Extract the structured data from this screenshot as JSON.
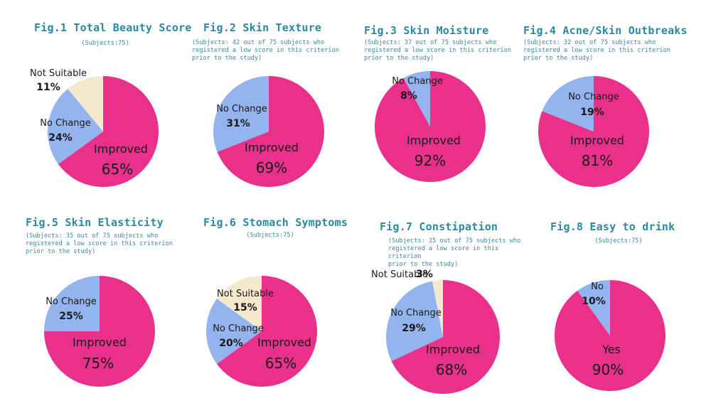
{
  "colors": {
    "improved": "#e9318c",
    "no_change": "#93b4ee",
    "not_suitable": "#f4e8cd",
    "title": "#2a8aa0"
  },
  "chart_data": [
    {
      "type": "pie",
      "title": "Fig.1 Total Beauty Score",
      "subtitle": "(Subjects:75)",
      "slices": [
        {
          "label": "Improved",
          "value": 65,
          "text": "65%",
          "color": "#e9318c"
        },
        {
          "label": "No Change",
          "value": 24,
          "text": "24%",
          "color": "#93b4ee"
        },
        {
          "label": "Not Suitable",
          "value": 11,
          "text": "11%",
          "color": "#f4e8cd"
        }
      ]
    },
    {
      "type": "pie",
      "title": "Fig.2 Skin Texture",
      "subtitle": "(Subjects: 42 out of 75 subjects who\nregistered a low score in this criterion\nprior to the study)",
      "slices": [
        {
          "label": "Improved",
          "value": 69,
          "text": "69%",
          "color": "#e9318c"
        },
        {
          "label": "No Change",
          "value": 31,
          "text": "31%",
          "color": "#93b4ee"
        }
      ]
    },
    {
      "type": "pie",
      "title": "Fig.3 Skin Moisture",
      "subtitle": "(Subjects: 37 out of 75 subjects who\nregistered a low score in this criterion\nprior to the study)",
      "slices": [
        {
          "label": "Improved",
          "value": 92,
          "text": "92%",
          "color": "#e9318c"
        },
        {
          "label": "No Change",
          "value": 8,
          "text": "8%",
          "color": "#93b4ee"
        }
      ]
    },
    {
      "type": "pie",
      "title": "Fig.4 Acne/Skin Outbreaks",
      "subtitle": "(Subjects: 32 out of 75 subjects who\nregistered a low score in this criterion\nprior to the study)",
      "slices": [
        {
          "label": "Improved",
          "value": 81,
          "text": "81%",
          "color": "#e9318c"
        },
        {
          "label": "No Change",
          "value": 19,
          "text": "19%",
          "color": "#93b4ee"
        }
      ]
    },
    {
      "type": "pie",
      "title": "Fig.5 Skin Elasticity",
      "subtitle": "(Subjects: 35 out of 75 subjects who\nregistered a low score in this criterion\nprior to the study)",
      "slices": [
        {
          "label": "Improved",
          "value": 75,
          "text": "75%",
          "color": "#e9318c"
        },
        {
          "label": "No Change",
          "value": 25,
          "text": "25%",
          "color": "#93b4ee"
        }
      ]
    },
    {
      "type": "pie",
      "title": "Fig.6  Stomach Symptoms",
      "subtitle": "(Subjects:75)",
      "slices": [
        {
          "label": "Improved",
          "value": 65,
          "text": "65%",
          "color": "#e9318c"
        },
        {
          "label": "No Change",
          "value": 20,
          "text": "20%",
          "color": "#93b4ee"
        },
        {
          "label": "Not Suitable",
          "value": 15,
          "text": "15%",
          "color": "#f4e8cd"
        }
      ]
    },
    {
      "type": "pie",
      "title": "Fig.7 Constipation",
      "subtitle": "(Subjects: 35 out of 75 subjects who\nregistered a low score in this criterion\nprior to the study)",
      "slices": [
        {
          "label": "Improved",
          "value": 68,
          "text": "68%",
          "color": "#e9318c"
        },
        {
          "label": "No Change",
          "value": 29,
          "text": "29%",
          "color": "#93b4ee"
        },
        {
          "label": "Not Suitable",
          "value": 3,
          "text": "3%",
          "color": "#f4e8cd"
        }
      ]
    },
    {
      "type": "pie",
      "title": "Fig.8 Easy to drink",
      "subtitle": "(Subjects:75)",
      "slices": [
        {
          "label": "Yes",
          "value": 90,
          "text": "90%",
          "color": "#e9318c"
        },
        {
          "label": "No",
          "value": 10,
          "text": "10%",
          "color": "#93b4ee"
        }
      ]
    }
  ]
}
